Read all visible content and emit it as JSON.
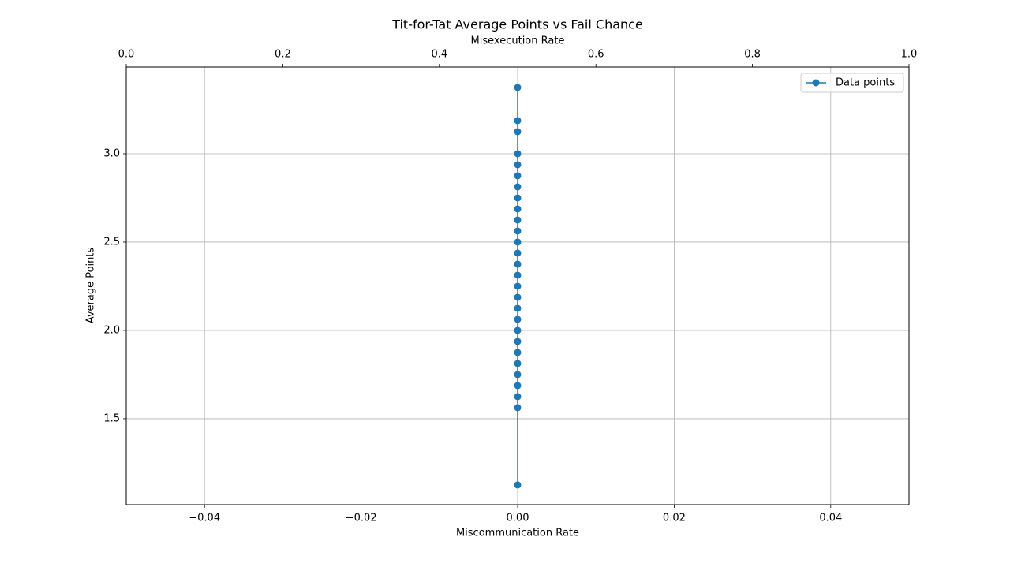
{
  "chart_data": {
    "type": "line",
    "title": "Tit-for-Tat Average Points vs Fail Chance",
    "xlabel": "Miscommunication Rate",
    "ylabel": "Average Points",
    "x2label": "Misexecution Rate",
    "x": [
      0,
      0,
      0,
      0,
      0,
      0,
      0,
      0,
      0,
      0,
      0,
      0,
      0,
      0,
      0,
      0,
      0,
      0,
      0,
      0,
      0,
      0,
      0,
      0,
      0,
      0,
      0,
      0
    ],
    "series": [
      {
        "name": "Data points",
        "color": "#1f77b4",
        "values": [
          3.375,
          3.1875,
          3.125,
          3.0,
          2.9375,
          2.875,
          2.8125,
          2.75,
          2.6875,
          2.625,
          2.5625,
          2.5,
          2.4375,
          2.375,
          2.3125,
          2.25,
          2.1875,
          2.125,
          2.0625,
          2.0,
          1.9375,
          1.875,
          1.8125,
          1.75,
          1.6875,
          1.625,
          1.5625,
          1.125
        ]
      }
    ],
    "xlim": [
      -0.05,
      0.05
    ],
    "xticks": [
      {
        "value": -0.04,
        "label": "−0.04"
      },
      {
        "value": -0.02,
        "label": "−0.02"
      },
      {
        "value": 0,
        "label": "0.00"
      },
      0.02,
      0.04
    ],
    "x2lim": [
      0,
      1
    ],
    "x2ticks": [
      {
        "value": 0,
        "label": "0.0"
      },
      0.2,
      0.4,
      0.6,
      0.8,
      {
        "value": 1,
        "label": "1.0"
      }
    ],
    "ylim": [
      1.013,
      3.491
    ],
    "yticks": [
      1.5,
      {
        "value": 2,
        "label": "2.0"
      },
      2.5,
      {
        "value": 3,
        "label": "3.0"
      }
    ],
    "grid": true,
    "legend": "upper right"
  }
}
